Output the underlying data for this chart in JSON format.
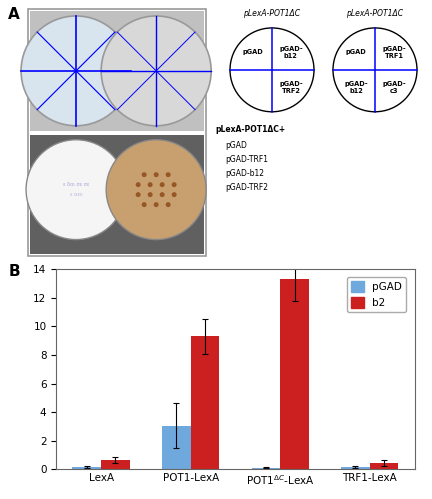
{
  "panel_A_label": "A",
  "panel_B_label": "B",
  "bar_categories": [
    "LexA",
    "POT1-LexA",
    "POT1ΔC-LexA",
    "TRF1-LexA"
  ],
  "pGAD_values": [
    0.15,
    3.05,
    0.08,
    0.15
  ],
  "pGAD_errors": [
    0.05,
    1.6,
    0.04,
    0.05
  ],
  "b2_values": [
    0.65,
    9.3,
    13.3,
    0.42
  ],
  "b2_errors": [
    0.2,
    1.2,
    1.5,
    0.2
  ],
  "pGAD_color": "#6fa8dc",
  "b2_color": "#cc2020",
  "ylim": [
    0,
    14
  ],
  "yticks": [
    0,
    2,
    4,
    6,
    8,
    10,
    12,
    14
  ],
  "legend_labels": [
    "pGAD",
    "b2"
  ],
  "circle1_title": "pLexA-POT1ΔC",
  "circle2_title": "pLexA-POT1ΔC",
  "bottom_text_title": "pLexA-POT1ΔC+",
  "bottom_text_lines": [
    "pGAD",
    "pGAD-TRF1",
    "pGAD-b12",
    "pGAD-TRF2"
  ],
  "photo_box_bg": "#e8e8e8",
  "plate_tl_color": "#c8d8e8",
  "plate_tr_color": "#d8d8d8",
  "plate_bl_color": "#f0f0f4",
  "plate_br_color": "#c8a888",
  "top_row_bg": "#888888",
  "bottom_row_bg": "#555555"
}
